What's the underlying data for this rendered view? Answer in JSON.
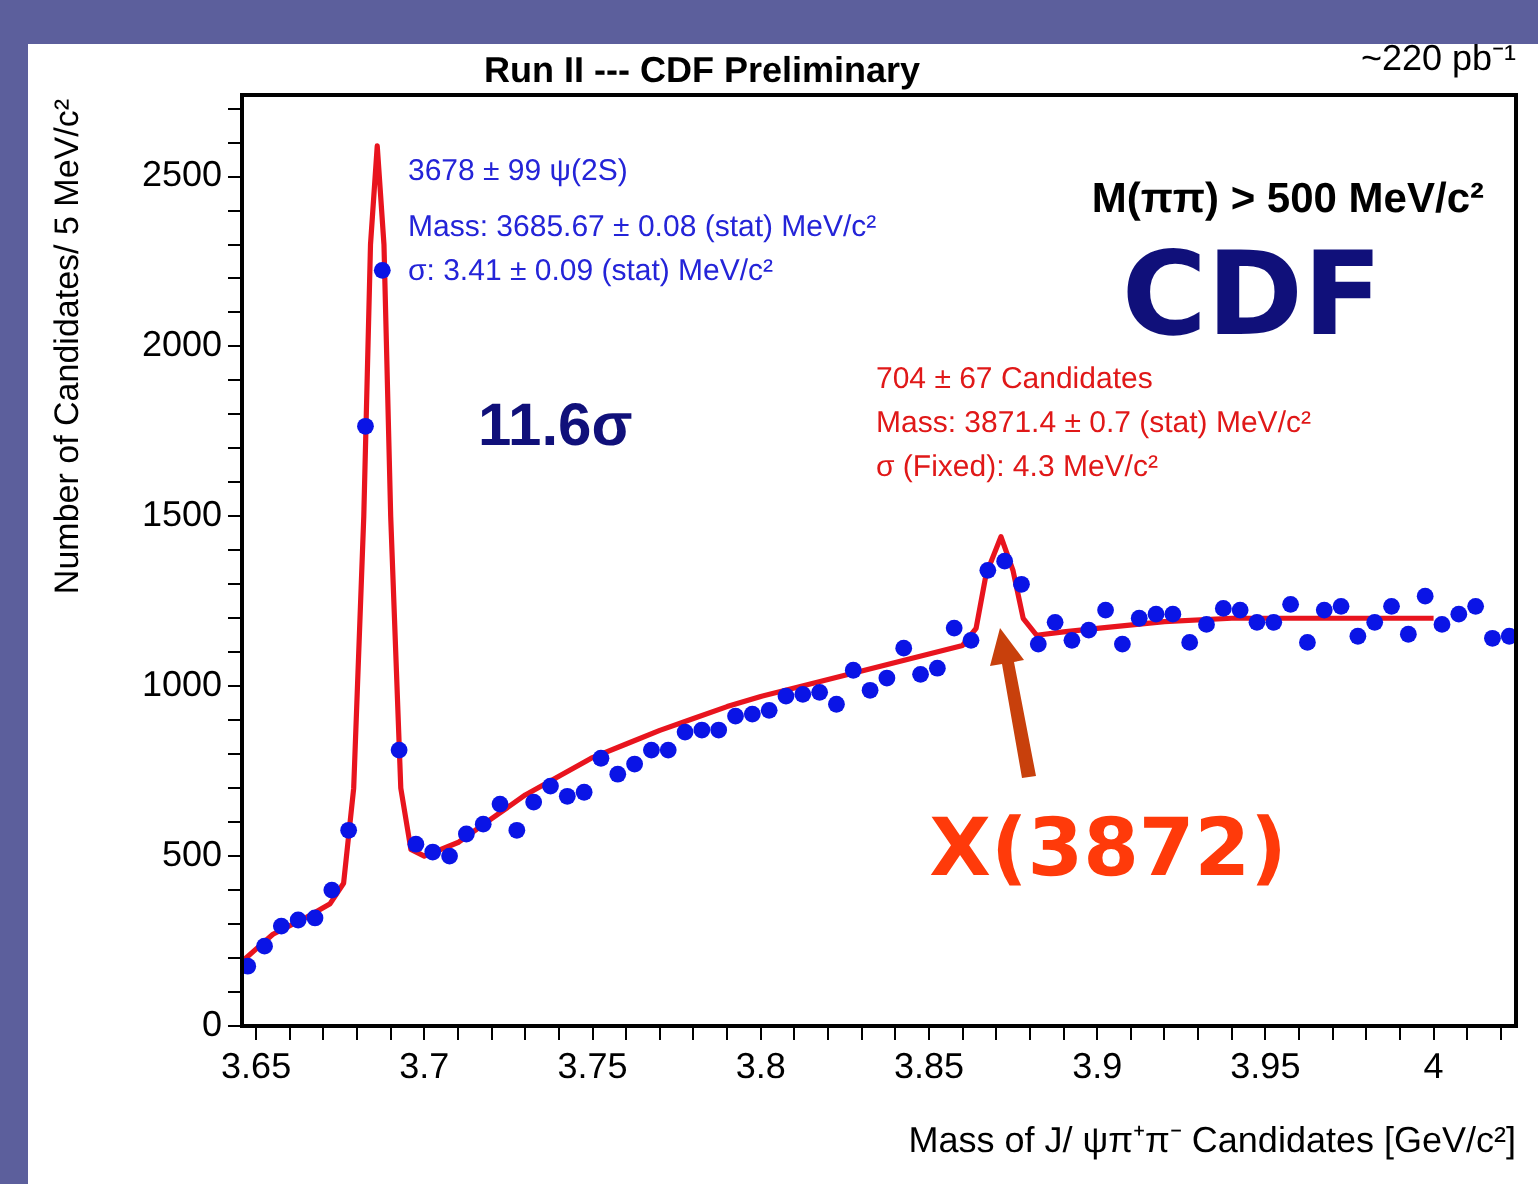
{
  "chart_data": {
    "type": "scatter",
    "title": "Run II --- CDF Preliminary",
    "xlabel": "Mass of J/ ψπ⁺π⁻ Candidates [GeV/c²]",
    "ylabel": "Number of Candidates/ 5 MeV/c²",
    "xlim": [
      3.6458,
      4.0245
    ],
    "ylim": [
      0,
      2740
    ],
    "xticks": [
      3.65,
      {
        "value": 3.66,
        "label": null
      },
      {
        "value": 3.67,
        "label": null
      },
      {
        "value": 3.68,
        "label": null
      },
      {
        "value": 3.69,
        "label": null
      },
      3.7,
      {
        "value": 3.71,
        "label": null
      },
      {
        "value": 3.72,
        "label": null
      },
      {
        "value": 3.73,
        "label": null
      },
      {
        "value": 3.74,
        "label": null
      },
      3.75,
      {
        "value": 3.76,
        "label": null
      },
      {
        "value": 3.77,
        "label": null
      },
      {
        "value": 3.78,
        "label": null
      },
      {
        "value": 3.79,
        "label": null
      },
      3.8,
      {
        "value": 3.81,
        "label": null
      },
      {
        "value": 3.82,
        "label": null
      },
      {
        "value": 3.83,
        "label": null
      },
      {
        "value": 3.84,
        "label": null
      },
      3.85,
      {
        "value": 3.86,
        "label": null
      },
      {
        "value": 3.87,
        "label": null
      },
      {
        "value": 3.88,
        "label": null
      },
      {
        "value": 3.89,
        "label": null
      },
      3.9,
      {
        "value": 3.91,
        "label": null
      },
      {
        "value": 3.92,
        "label": null
      },
      {
        "value": 3.93,
        "label": null
      },
      {
        "value": 3.94,
        "label": null
      },
      3.95,
      {
        "value": 3.96,
        "label": null
      },
      {
        "value": 3.97,
        "label": null
      },
      {
        "value": 3.98,
        "label": null
      },
      {
        "value": 3.99,
        "label": null
      },
      4,
      {
        "value": 4.01,
        "label": null
      },
      {
        "value": 4.02,
        "label": null
      }
    ],
    "yticks": [
      0,
      {
        "value": 100,
        "label": null
      },
      {
        "value": 200,
        "label": null
      },
      {
        "value": 300,
        "label": null
      },
      {
        "value": 400,
        "label": null
      },
      500,
      {
        "value": 600,
        "label": null
      },
      {
        "value": 700,
        "label": null
      },
      {
        "value": 800,
        "label": null
      },
      {
        "value": 900,
        "label": null
      },
      1000,
      {
        "value": 1100,
        "label": null
      },
      {
        "value": 1200,
        "label": null
      },
      {
        "value": 1300,
        "label": null
      },
      {
        "value": 1400,
        "label": null
      },
      1500,
      {
        "value": 1600,
        "label": null
      },
      {
        "value": 1700,
        "label": null
      },
      {
        "value": 1800,
        "label": null
      },
      {
        "value": 1900,
        "label": null
      },
      2000,
      {
        "value": 2100,
        "label": null
      },
      {
        "value": 2200,
        "label": null
      },
      {
        "value": 2300,
        "label": null
      },
      {
        "value": 2400,
        "label": null
      },
      2500,
      {
        "value": 2600,
        "label": null
      },
      {
        "value": 2700,
        "label": null
      }
    ],
    "grid": false,
    "legend": false,
    "series": [
      {
        "marker": "circle",
        "color": "#0a14e6",
        "x": [
          3.6475,
          3.6525,
          3.6575,
          3.6625,
          3.6675,
          3.6725,
          3.6775,
          3.6825,
          3.6875,
          3.6925,
          3.6975,
          3.7025,
          3.7075,
          3.7125,
          3.7175,
          3.7225,
          3.7275,
          3.7325,
          3.7375,
          3.7425,
          3.7475,
          3.7525,
          3.7575,
          3.7625,
          3.7675,
          3.7725,
          3.7775,
          3.7825,
          3.7875,
          3.7925,
          3.7975,
          3.8025,
          3.8075,
          3.8125,
          3.8175,
          3.8225,
          3.8275,
          3.8325,
          3.8375,
          3.8425,
          3.8475,
          3.8525,
          3.8575,
          3.8625,
          3.8675,
          3.8725,
          3.8775,
          3.8825,
          3.8875,
          3.8925,
          3.8975,
          3.9025,
          3.9075,
          3.9125,
          3.9175,
          3.9225,
          3.9275,
          3.9325,
          3.9375,
          3.9425,
          3.9475,
          3.9525,
          3.9575,
          3.9625,
          3.9675,
          3.9725,
          3.9775,
          3.9825,
          3.9875,
          3.9925,
          3.9975,
          4.0025,
          4.0075,
          4.0125,
          4.0175,
          4.0225
        ],
        "values": [
          176,
          235,
          294,
          312,
          318,
          400,
          576,
          1765,
          2224,
          812,
          535,
          512,
          500,
          565,
          594,
          653,
          576,
          659,
          706,
          676,
          688,
          788,
          741,
          771,
          812,
          812,
          865,
          871,
          871,
          912,
          918,
          929,
          971,
          976,
          982,
          947,
          1047,
          988,
          1024,
          1112,
          1035,
          1053,
          1171,
          1135,
          1341,
          1368,
          1300,
          1124,
          1188,
          1135,
          1165,
          1224,
          1124,
          1200,
          1212,
          1212,
          1129,
          1182,
          1229,
          1224,
          1188,
          1188,
          1241,
          1129,
          1224,
          1235,
          1147,
          1188,
          1235,
          1153,
          1265,
          1182,
          1212,
          1235,
          1141,
          1147
        ]
      },
      {
        "type": "line",
        "marker": "none",
        "color": "#e8141e",
        "x": [
          3.6458,
          3.655,
          3.665,
          3.672,
          3.676,
          3.679,
          3.682,
          3.684,
          3.686,
          3.688,
          3.69,
          3.693,
          3.696,
          3.7,
          3.71,
          3.72,
          3.73,
          3.74,
          3.75,
          3.76,
          3.77,
          3.78,
          3.79,
          3.8,
          3.81,
          3.82,
          3.83,
          3.84,
          3.85,
          3.86,
          3.864,
          3.867,
          3.8714,
          3.875,
          3.878,
          3.882,
          3.89,
          3.9,
          3.92,
          3.94,
          3.96,
          3.98,
          4.0
        ],
        "values": [
          190,
          270,
          320,
          360,
          420,
          700,
          1500,
          2300,
          2590,
          2300,
          1500,
          700,
          520,
          500,
          540,
          610,
          680,
          735,
          790,
          830,
          870,
          905,
          940,
          970,
          995,
          1020,
          1045,
          1070,
          1095,
          1120,
          1170,
          1330,
          1440,
          1340,
          1200,
          1150,
          1160,
          1170,
          1190,
          1200,
          1200,
          1200,
          1200
        ]
      }
    ],
    "annotations": [
      "3678 ± 99 ψ(2S)",
      "Mass: 3685.67 ± 0.08 (stat) MeV/c²",
      "σ: 3.41 ± 0.09 (stat) MeV/c²",
      "704 ± 67 Candidates",
      "Mass: 3871.4 ± 0.7 (stat) MeV/c²",
      "σ (Fixed): 4.3 MeV/c²",
      "M(ππ) > 500 MeV/c²",
      "CDF",
      "11.6σ",
      "X(3872)",
      "~220 pb⁻¹"
    ]
  }
}
